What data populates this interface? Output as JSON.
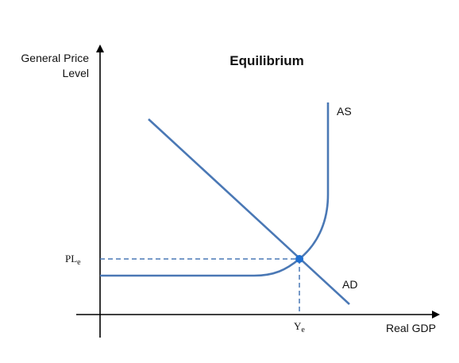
{
  "chart_data": {
    "type": "line",
    "title": "Equilibrium",
    "ylabel_line1": "General Price",
    "ylabel_line2": "Level",
    "xlabel": "Real GDP",
    "grid": false,
    "legend": "none",
    "series": [
      {
        "name": "AS",
        "shape": "horizontal, then curving, then vertical",
        "color": "#4a78b5"
      },
      {
        "name": "AD",
        "shape": "downward sloping straight line",
        "color": "#4a78b5"
      }
    ],
    "equilibrium": {
      "price_label": "PL",
      "price_label_sub": "e",
      "output_label": "Y",
      "output_label_sub": "e",
      "point_color": "#1f6fd1",
      "guide_style": "dashed"
    },
    "axis_color": "#000000"
  }
}
